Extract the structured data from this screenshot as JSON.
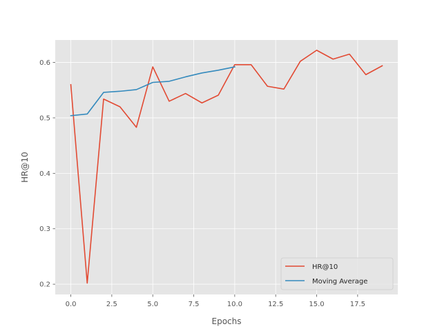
{
  "chart_data": {
    "type": "line",
    "title": "",
    "xlabel": "Epochs",
    "ylabel": "HR@10",
    "xlim": [
      -0.95,
      19.95
    ],
    "ylim": [
      0.1815,
      0.6405
    ],
    "x_ticks": [
      0,
      2.5,
      5,
      7.5,
      10,
      12.5,
      15,
      17.5
    ],
    "x_tick_labels": [
      "0.0",
      "2.5",
      "5.0",
      "7.5",
      "10.0",
      "12.5",
      "15.0",
      "17.5"
    ],
    "y_ticks": [
      0.2,
      0.3,
      0.4,
      0.5,
      0.6
    ],
    "y_tick_labels": [
      "0.2",
      "0.3",
      "0.4",
      "0.5",
      "0.6"
    ],
    "grid": true,
    "legend_position": "lower-right",
    "series": [
      {
        "name": "HR@10",
        "color": "#E24A33",
        "x": [
          0,
          1,
          2,
          3,
          4,
          5,
          6,
          7,
          8,
          9,
          10,
          11,
          12,
          13,
          14,
          15,
          16,
          17,
          18,
          19
        ],
        "values": [
          0.56,
          0.202,
          0.534,
          0.52,
          0.483,
          0.592,
          0.53,
          0.544,
          0.527,
          0.541,
          0.596,
          0.596,
          0.557,
          0.552,
          0.602,
          0.622,
          0.606,
          0.615,
          0.578,
          0.594
        ]
      },
      {
        "name": "Moving Average",
        "color": "#348ABD",
        "x": [
          0,
          1,
          2,
          3,
          4,
          5,
          6,
          7,
          8,
          9,
          10
        ],
        "values": [
          0.504,
          0.507,
          0.546,
          0.548,
          0.551,
          0.564,
          0.566,
          0.574,
          0.581,
          0.586,
          0.592
        ]
      }
    ]
  }
}
